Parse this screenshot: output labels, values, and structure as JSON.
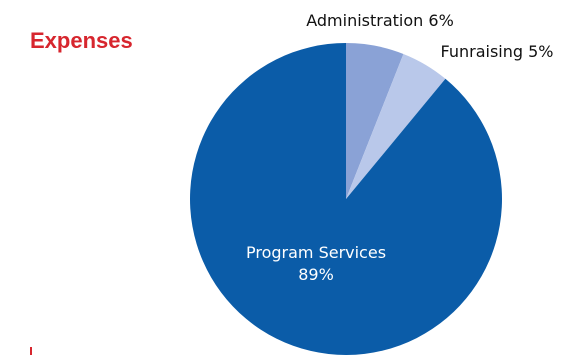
{
  "chart_data": {
    "type": "pie",
    "title": "Expenses",
    "slices": [
      {
        "label": "Administration",
        "pct_label": "6%",
        "value": 6,
        "color": "#8aa2d6",
        "label_color": "#111111"
      },
      {
        "label": "Funraising",
        "pct_label": "5%",
        "value": 5,
        "color": "#b9c8ea",
        "label_color": "#111111"
      },
      {
        "label": "Program Services",
        "pct_label": "89%",
        "value": 89,
        "color": "#0b5ca8",
        "label_color": "#ffffff"
      }
    ],
    "start_angle_deg": 0,
    "direction": "clockwise"
  },
  "colors": {
    "title": "#d7262e",
    "accent_mark": "#d7262e",
    "background": "#ffffff"
  }
}
